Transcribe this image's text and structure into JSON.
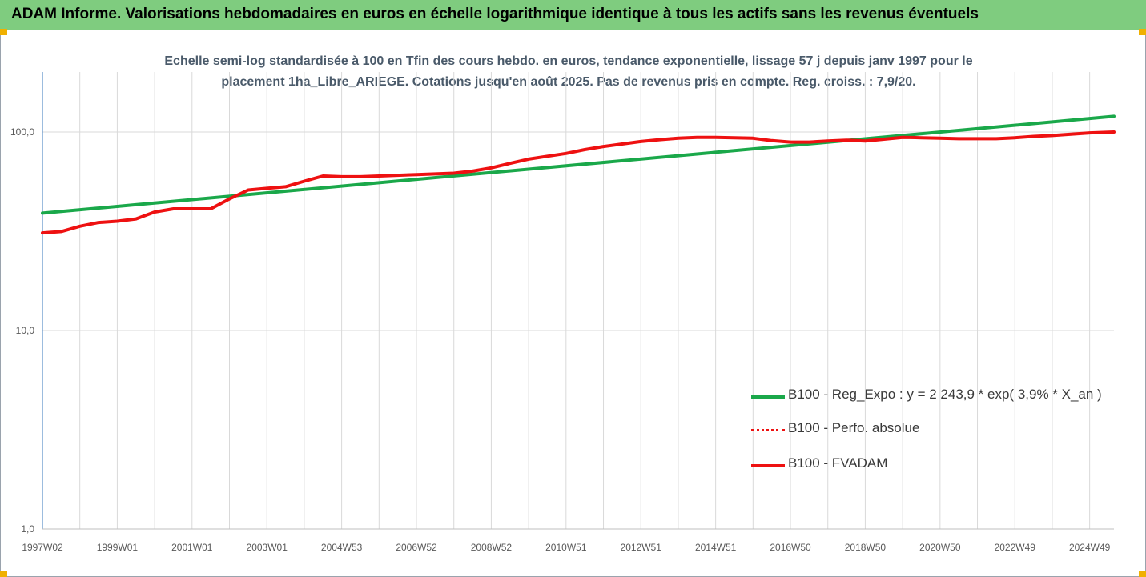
{
  "header": {
    "title": "ADAM Informe. Valorisations hebdomadaires en euros en échelle logarithmique identique à tous les actifs sans les revenus éventuels"
  },
  "colors": {
    "header_bg": "#7fcc7f",
    "corner": "#f0b000",
    "green": "#1aa84a",
    "red": "#ee1111",
    "grid": "#d9d9d9",
    "axis": "#5b8fc7"
  },
  "chart_data": {
    "type": "line",
    "title_lines": [
      "Echelle semi-log standardisée à 100 en Tfin des cours hebdo. en euros, tendance exponentielle, lissage 57 j depuis janv 1997 pour le",
      "placement 1ha_Libre_ARIEGE. Cotations jusqu'en août 2025. Pas de revenus pris en compte. Reg. croiss. : 7,9/20."
    ],
    "yscale": "log",
    "ylim": [
      1,
      200
    ],
    "yticks": [
      {
        "value": 1,
        "label": "1,0"
      },
      {
        "value": 10,
        "label": "10,0"
      },
      {
        "value": 100,
        "label": "100,0"
      }
    ],
    "xlim": [
      1997.0,
      2025.65
    ],
    "xticks": [
      {
        "value": 1997.0,
        "label": "1997W02"
      },
      {
        "value": 1999.0,
        "label": "1999W01"
      },
      {
        "value": 2001.0,
        "label": "2001W01"
      },
      {
        "value": 2003.0,
        "label": "2003W01"
      },
      {
        "value": 2005.0,
        "label": "2004W53"
      },
      {
        "value": 2007.0,
        "label": "2006W52"
      },
      {
        "value": 2009.0,
        "label": "2008W52"
      },
      {
        "value": 2011.0,
        "label": "2010W51"
      },
      {
        "value": 2013.0,
        "label": "2012W51"
      },
      {
        "value": 2015.0,
        "label": "2014W51"
      },
      {
        "value": 2017.0,
        "label": "2016W50"
      },
      {
        "value": 2019.0,
        "label": "2018W50"
      },
      {
        "value": 2021.0,
        "label": "2020W50"
      },
      {
        "value": 2023.0,
        "label": "2022W49"
      },
      {
        "value": 2025.0,
        "label": "2024W49"
      }
    ],
    "grid": true,
    "legend_position": "bottom-right",
    "series": [
      {
        "name": "B100 - Reg_Expo : y = 2 243,9 * exp( 3,9% *  X_an )",
        "color": "#1aa84a",
        "style": "solid",
        "x": [
          1997.0,
          2025.65
        ],
        "y": [
          39.0,
          120.0
        ]
      },
      {
        "name": "B100 - Perfo. absolue",
        "color": "#ee1111",
        "style": "dotted",
        "x": [],
        "y": []
      },
      {
        "name": "B100 - FVADAM",
        "color": "#ee1111",
        "style": "solid",
        "x": [
          1997.0,
          1997.5,
          1998.0,
          1998.5,
          1999.0,
          1999.5,
          2000.0,
          2000.5,
          2001.0,
          2001.5,
          2002.0,
          2002.5,
          2003.0,
          2003.5,
          2004.0,
          2004.5,
          2005.0,
          2005.5,
          2006.0,
          2007.0,
          2008.0,
          2008.5,
          2009.0,
          2009.5,
          2010.0,
          2010.5,
          2011.0,
          2011.5,
          2012.0,
          2012.5,
          2013.0,
          2013.5,
          2014.0,
          2014.5,
          2015.0,
          2015.5,
          2016.0,
          2016.5,
          2017.0,
          2017.5,
          2018.0,
          2018.5,
          2019.0,
          2019.5,
          2020.0,
          2020.5,
          2021.0,
          2021.5,
          2022.0,
          2022.5,
          2023.0,
          2023.5,
          2024.0,
          2024.5,
          2025.0,
          2025.65
        ],
        "y": [
          31.0,
          31.5,
          33.5,
          35.0,
          35.5,
          36.5,
          39.5,
          41.0,
          41.0,
          41.0,
          46.0,
          51.0,
          52.0,
          53.0,
          56.5,
          60.0,
          59.5,
          59.5,
          60.0,
          61.0,
          62.0,
          63.5,
          66.0,
          69.5,
          73.0,
          75.5,
          78.0,
          81.5,
          84.5,
          87.0,
          89.5,
          91.5,
          93.0,
          94.0,
          94.0,
          93.5,
          93.0,
          90.5,
          89.0,
          89.0,
          90.0,
          91.0,
          90.0,
          92.0,
          94.0,
          93.5,
          93.0,
          92.5,
          92.5,
          92.5,
          93.5,
          95.0,
          96.0,
          97.5,
          99.0,
          100.0
        ]
      }
    ]
  }
}
